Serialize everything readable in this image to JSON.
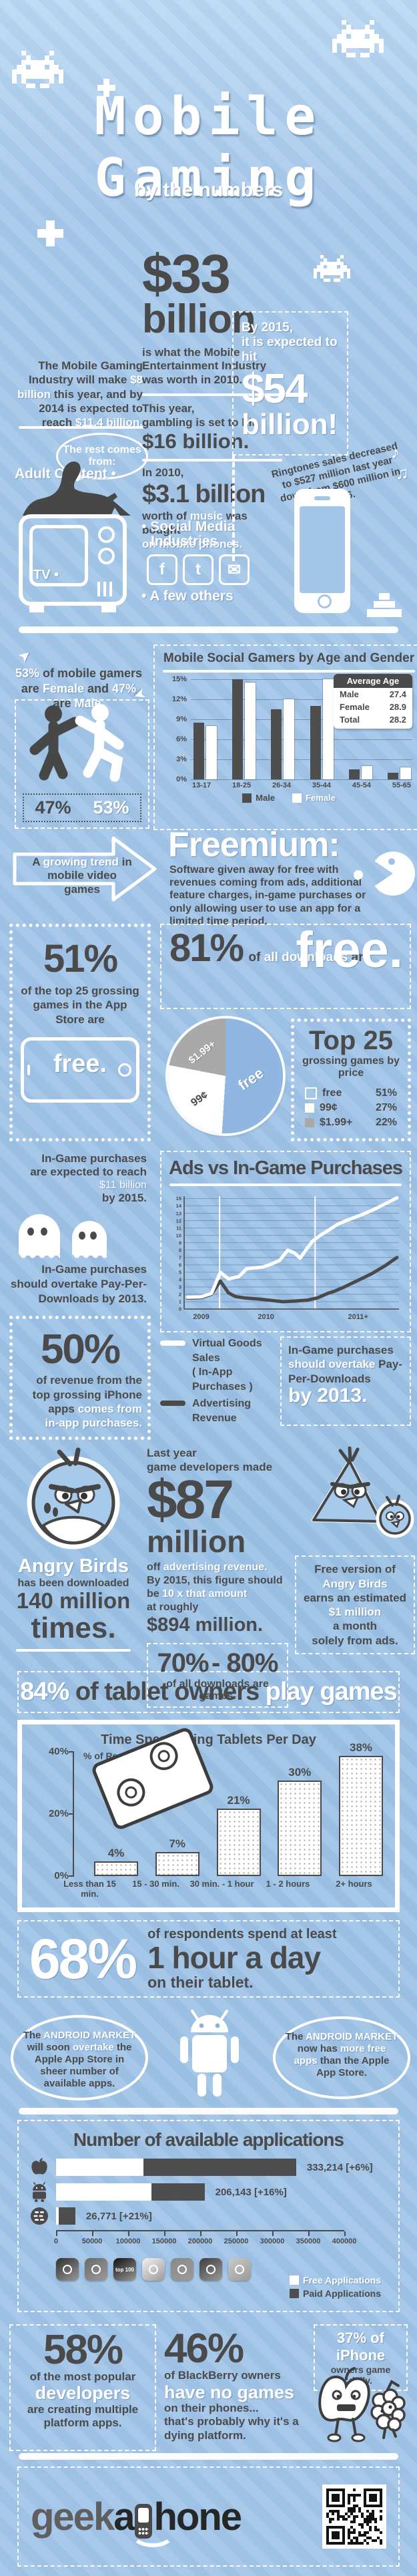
{
  "header": {
    "title_top": "Mobile",
    "title_bottom": "Gaming",
    "subtitle": "by the numbers"
  },
  "s33": {
    "left_p1": "The Mobile Gaming Industry will make",
    "left_hl1": "$8 billion",
    "left_p2": "this year, and by 2014 is expected to reach",
    "left_hl2": "$11.4 billion.",
    "big": "$33",
    "big_b": "billion",
    "desc": "is what the Mobile Entertainment Industry was worth in 2010.",
    "gamble1": "This year,",
    "gamble2": "gambling is set to hit",
    "gamble3": "$16 billion.",
    "music1": "In 2010,",
    "music2": "$3.1 billion",
    "music3a": "worth of",
    "music3b": "music",
    "music3c": "was bought",
    "music4": "on mobile phones.",
    "by2015a": "By 2015,",
    "by2015b": "it is expected to hit",
    "big54": "$54",
    "big54b": "billion!",
    "ringtones": "Ringtones sales decreased to $527 million last year down from $600 million in 2006.",
    "bubble": "The rest comes from:",
    "adult": "Adult Content •",
    "tv": "TV •",
    "social1": "• Social Media",
    "social2": "Industries",
    "few": "• A few others"
  },
  "gamers": {
    "p1": "53%",
    "p2": "of mobile gamers are",
    "p3": "Female",
    "p4": "and",
    "p5": "47%",
    "p6": "are",
    "p7": "Male.",
    "male_pct": "47%",
    "female_pct": "53%"
  },
  "trend": {
    "a": "A",
    "b": "growing trend",
    "c": "in",
    "d": "mobile video games"
  },
  "freemium": {
    "title": "Freemium:",
    "body": "Software given away for free with revenues coming from ads, additional feature charges, in-game purchases or only allowing user to use an app for a limited time period."
  },
  "fiftyone": {
    "big": "51%",
    "text": "of the top 25 grossing games in the App Store are",
    "free": "free."
  },
  "eightyone": {
    "big": "81%",
    "of": "of",
    "hl": "all downloads",
    "are": "are",
    "free": "free."
  },
  "pie_labels": {
    "free": "free",
    "p99": "99¢",
    "p199": "$1.99+"
  },
  "top25": {
    "title": "Top 25",
    "subtitle": "grossing games by price",
    "rows": [
      {
        "label": "free",
        "value": "51%"
      },
      {
        "label": "99¢",
        "value": "27%"
      },
      {
        "label": "$1.99+",
        "value": "22%"
      }
    ]
  },
  "ingame": {
    "r1a": "In-Game purchases",
    "r1b": "are expected to reach",
    "r1big": "$11 billion",
    "r1c": "by 2015.",
    "r2a": "In-Game purchases",
    "r2b": "should overtake",
    "r2c": "Pay-Per-Downloads",
    "r2d": "by 2013.",
    "fifty_big": "50%",
    "fifty1": "of revenue from the",
    "fifty2": "top grossing iPhone",
    "fifty3": "apps",
    "fifty4": "comes from",
    "fifty5": "in-app purchases."
  },
  "ads": {
    "title": "Ads vs In-Game Purchases",
    "legend1a": "Virtual Goods Sales",
    "legend1b": "( In-App Purchases )",
    "legend2": "Advertising Revenue",
    "box1": "In-Game purchases",
    "box2": "should overtake",
    "box3": "Pay-Per-Downloads",
    "box4": "by 2013."
  },
  "angry": {
    "name": "Angry Birds",
    "d1": "has been downloaded",
    "d2": "140 million",
    "d3": "times.",
    "c1": "Last year",
    "c2": "game developers made",
    "big": "$87",
    "big2": "million",
    "c3a": "off",
    "c3b": "advertising revenue.",
    "c4": "By 2015, this figure should",
    "c5a": "be",
    "c5b": "10 x that amount",
    "c6": "at roughly",
    "c7": "$894 million.",
    "dl1": "70%",
    "dl2": "- 80%",
    "dl3": "of all downloads are games.",
    "f1": "Free version of",
    "f2": "Angry Birds",
    "f3": "earns an estimated",
    "f4": "$1 million",
    "f5": "a month",
    "f6": "solely from ads."
  },
  "banner84": {
    "a": "84%",
    "b": "of tablet owners",
    "c": "play games"
  },
  "sixty8": {
    "big": "68%",
    "a": "of respondents spend at least",
    "b": "1 hour a day",
    "c": "on their tablet."
  },
  "android": {
    "l1": "The",
    "l2": "ANDROID MARKET",
    "l3": "will",
    "l4": "soon",
    "l5": "overtake",
    "l6": "the Apple App Store in sheer number of available apps.",
    "r1": "The",
    "r2": "ANDROID MARKET",
    "r3": "now has",
    "r4": "more free apps",
    "r5": "than the Apple App Store."
  },
  "bottom": {
    "b58": "58%",
    "b58a": "of the most popular",
    "b58b": "developers",
    "b58c": "are creating multiple platform apps.",
    "b46": "46%",
    "b46a": "of BlackBerry owners",
    "b46b": "have no games",
    "b46c": "on their phones...",
    "b46d": "that's probably why it's a",
    "b46e": "dying platform.",
    "b37a": "37% of iPhone",
    "b37b": "owners game daily."
  },
  "footer": {
    "logo_geek": "geek",
    "logo_a": "a",
    "logo_hone": "hone"
  },
  "chart_data": [
    {
      "id": "age_gender",
      "type": "bar",
      "title": "Mobile Social Gamers by Age and Gender",
      "categories": [
        "13-17",
        "18-25",
        "26-34",
        "35-44",
        "45-54",
        "55-65"
      ],
      "series": [
        {
          "name": "Male",
          "color": "#4e4e4e",
          "values": [
            8.5,
            15,
            10.5,
            11,
            1.5,
            1
          ]
        },
        {
          "name": "Female",
          "color": "#ffffff",
          "values": [
            8,
            14.5,
            12,
            15,
            2,
            1.8
          ]
        }
      ],
      "yticks": [
        "0%",
        "3%",
        "6%",
        "9%",
        "12%",
        "15%"
      ],
      "ylim": [
        0,
        15
      ],
      "grid": true,
      "legend_position": "bottom",
      "avg_box_title": "Average Age",
      "avg_rows": [
        [
          "Male",
          "27.4"
        ],
        [
          "Female",
          "28.9"
        ],
        [
          "Total",
          "28.2"
        ]
      ]
    },
    {
      "id": "price_pie",
      "type": "pie",
      "title": "Top 25 grossing games by price",
      "labels": [
        "free",
        "99¢",
        "$1.99+"
      ],
      "values": [
        51,
        27,
        22
      ],
      "colors": [
        "#8fb7e1",
        "#ffffff",
        "#a9a9a9"
      ]
    },
    {
      "id": "ads_vs_ingame",
      "type": "line",
      "title": "Ads vs In-Game Purchases",
      "xticks": [
        "2009",
        "2010",
        "2011+"
      ],
      "xtick_pos": [
        2009.05,
        2010.0,
        2011.35
      ],
      "vlines": [
        2009.32,
        2010.72
      ],
      "xlim": [
        2008.8,
        2011.95
      ],
      "ylim": [
        0,
        15
      ],
      "grid": true,
      "series": [
        {
          "name": "Virtual Goods Sales ( In-App Purchases )",
          "color": "#ffffff",
          "points": [
            [
              2008.85,
              1.6
            ],
            [
              2009.05,
              1.65
            ],
            [
              2009.2,
              2.1
            ],
            [
              2009.33,
              5.0
            ],
            [
              2009.45,
              4.1
            ],
            [
              2009.6,
              4.4
            ],
            [
              2009.72,
              5.5
            ],
            [
              2009.85,
              5.6
            ],
            [
              2009.95,
              5.7
            ],
            [
              2010.05,
              6.0
            ],
            [
              2010.2,
              6.6
            ],
            [
              2010.32,
              8.0
            ],
            [
              2010.42,
              7.6
            ],
            [
              2010.5,
              6.9
            ],
            [
              2010.6,
              8.2
            ],
            [
              2010.68,
              9.2
            ],
            [
              2010.78,
              9.9
            ],
            [
              2010.9,
              10.6
            ],
            [
              2011.05,
              11.5
            ],
            [
              2011.2,
              12.1
            ],
            [
              2011.4,
              12.8
            ],
            [
              2011.6,
              13.6
            ],
            [
              2011.75,
              14.3
            ],
            [
              2011.92,
              15.1
            ]
          ]
        },
        {
          "name": "Advertising Revenue",
          "color": "#4a4a4a",
          "points": [
            [
              2008.85,
              1.5
            ],
            [
              2009.05,
              1.55
            ],
            [
              2009.2,
              2.0
            ],
            [
              2009.33,
              3.8
            ],
            [
              2009.45,
              2.2
            ],
            [
              2009.55,
              1.7
            ],
            [
              2009.7,
              1.5
            ],
            [
              2009.9,
              1.35
            ],
            [
              2010.1,
              1.15
            ],
            [
              2010.25,
              1.0
            ],
            [
              2010.45,
              1.1
            ],
            [
              2010.6,
              1.2
            ],
            [
              2010.75,
              1.5
            ],
            [
              2010.9,
              2.1
            ],
            [
              2011.0,
              2.4
            ],
            [
              2011.15,
              3.0
            ],
            [
              2011.35,
              3.9
            ],
            [
              2011.55,
              4.8
            ],
            [
              2011.75,
              5.9
            ],
            [
              2011.92,
              7.0
            ]
          ]
        }
      ]
    },
    {
      "id": "tablet_time",
      "type": "bar",
      "title": "Time Spent Using Tablets Per Day",
      "ylabel": "% of Respondents",
      "categories": [
        "Less than 15 min.",
        "15 - 30 min.",
        "30 min. - 1 hour",
        "1 - 2 hours",
        "2+ hours"
      ],
      "values": [
        4,
        7,
        21,
        30,
        38
      ],
      "value_labels": [
        "4%",
        "7%",
        "21%",
        "30%",
        "38%"
      ],
      "yticks": [
        "0%",
        "20%",
        "40%"
      ],
      "ylim": [
        0,
        40
      ]
    },
    {
      "id": "available_apps",
      "type": "bar",
      "orientation": "horizontal",
      "stacked": true,
      "title": "Number of available applications",
      "categories": [
        "Apple",
        "Android",
        "BlackBerry"
      ],
      "totals": [
        333214,
        206143,
        26771
      ],
      "total_labels": [
        "333,214 [+6%]",
        "206,143 [+16%]",
        "26,771 [+21%]"
      ],
      "free_estimates": [
        121000,
        132000,
        3500
      ],
      "xticks": [
        "0",
        "50000",
        "100000",
        "150000",
        "200000",
        "250000",
        "300000",
        "350000",
        "400000"
      ],
      "xlim": [
        0,
        400000
      ],
      "legend": [
        "Free Applications",
        "Paid Applications"
      ]
    }
  ]
}
